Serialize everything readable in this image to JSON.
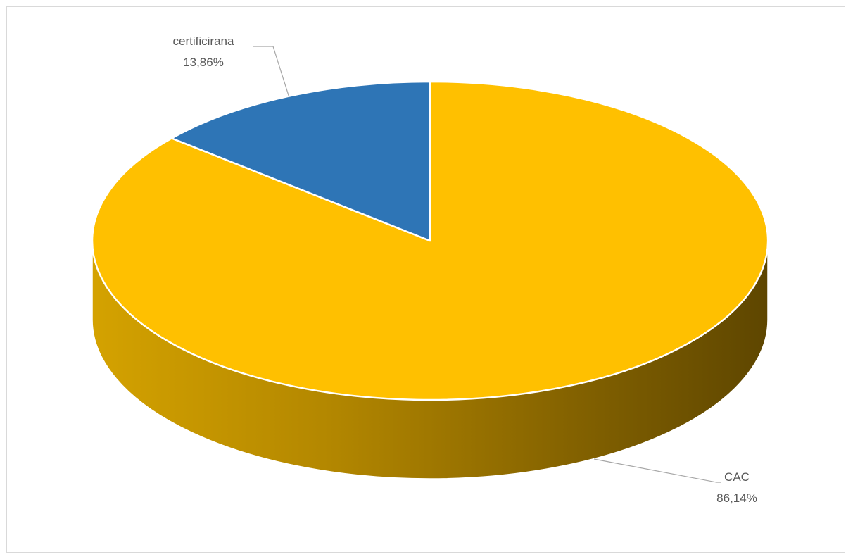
{
  "chart_data": {
    "type": "pie",
    "style": "3d",
    "title": "",
    "slices": [
      {
        "label": "certificirana",
        "value": 13.86,
        "value_label": "13,86%",
        "color": "#2e75b6"
      },
      {
        "label": "CAC",
        "value": 86.14,
        "value_label": "86,14%",
        "color": "#ffc000"
      }
    ],
    "legend": "none",
    "data_labels": "outside-with-leader-lines"
  }
}
